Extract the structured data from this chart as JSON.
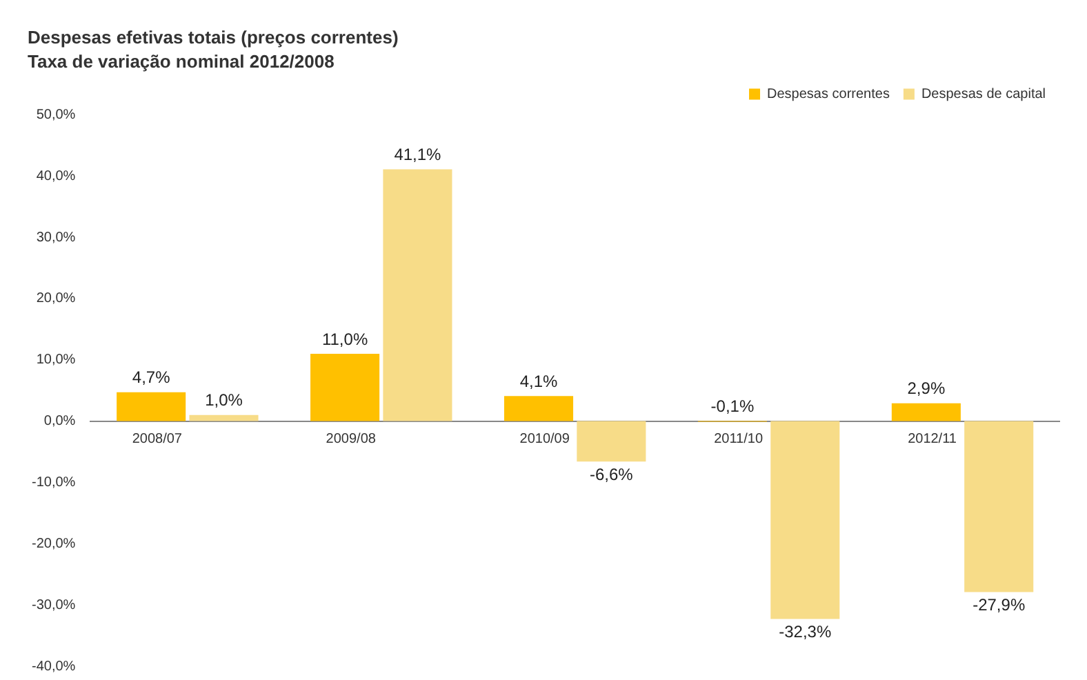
{
  "chart_data": {
    "type": "bar",
    "title": "Despesas efetivas totais (preços correntes)",
    "subtitle": "Taxa de variação nominal 2012/2008",
    "categories": [
      "2008/07",
      "2009/08",
      "2010/09",
      "2011/10",
      "2012/11"
    ],
    "series": [
      {
        "name": "Despesas correntes",
        "color": "#ffc000",
        "values": [
          4.7,
          11.0,
          4.1,
          -0.1,
          2.9
        ],
        "value_labels": [
          "4,7%",
          "11,0%",
          "4,1%",
          "-0,1%",
          "2,9%"
        ]
      },
      {
        "name": "Despesas de capital",
        "color": "#f7dc88",
        "values": [
          1.0,
          41.1,
          -6.6,
          -32.3,
          -27.9
        ],
        "value_labels": [
          "1,0%",
          "41,1%",
          "-6,6%",
          "-32,3%",
          "-27,9%"
        ]
      }
    ],
    "ylim": [
      -40,
      50
    ],
    "yticks": [
      {
        "value": -40,
        "label": "-40,0%"
      },
      {
        "value": -30,
        "label": "-30,0%"
      },
      {
        "value": -20,
        "label": "-20,0%"
      },
      {
        "value": -10,
        "label": "-10,0%"
      },
      {
        "value": 0,
        "label": "0,0%"
      },
      {
        "value": 10,
        "label": "10,0%"
      },
      {
        "value": 20,
        "label": "20,0%"
      },
      {
        "value": 30,
        "label": "30,0%"
      },
      {
        "value": 40,
        "label": "40,0%"
      },
      {
        "value": 50,
        "label": "50,0%"
      }
    ],
    "grid": false,
    "legend": "top right"
  }
}
